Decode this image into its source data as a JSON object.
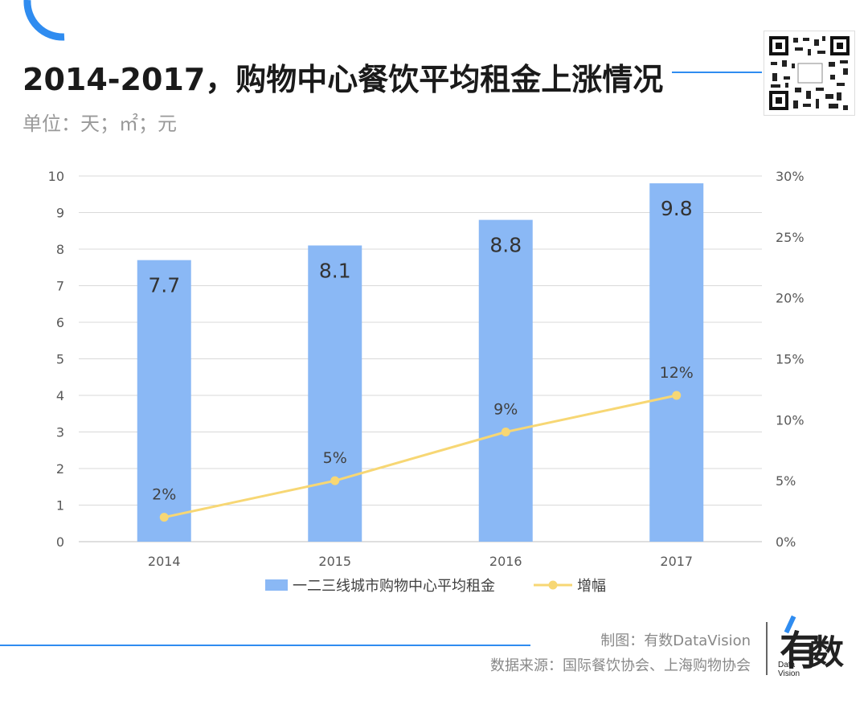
{
  "header": {
    "title": "2014-2017，购物中心餐饮平均租金上涨情况",
    "subtitle": "单位：天；㎡；元"
  },
  "chart_data": {
    "type": "bar",
    "categories": [
      "2014",
      "2015",
      "2016",
      "2017"
    ],
    "series": [
      {
        "name": "一二三线城市购物中心平均租金",
        "type": "bar",
        "axis": "left",
        "values": [
          7.7,
          8.1,
          8.8,
          9.8
        ],
        "labels": [
          "7.7",
          "8.1",
          "8.8",
          "9.8"
        ],
        "color": "#8ab8f5"
      },
      {
        "name": "增幅",
        "type": "line",
        "axis": "right",
        "values": [
          0.02,
          0.05,
          0.09,
          0.12
        ],
        "labels": [
          "2%",
          "5%",
          "9%",
          "12%"
        ],
        "color": "#f7d774"
      }
    ],
    "left_axis": {
      "ylim": [
        0,
        10
      ],
      "ticks": [
        "0",
        "1",
        "2",
        "3",
        "4",
        "5",
        "6",
        "7",
        "8",
        "9",
        "10"
      ]
    },
    "right_axis": {
      "ylim": [
        0,
        0.3
      ],
      "ticks": [
        "0%",
        "5%",
        "10%",
        "15%",
        "20%",
        "25%",
        "30%"
      ]
    },
    "grid": true,
    "legend_position": "bottom"
  },
  "footer": {
    "maker": "制图：有数DataVision",
    "source": "数据来源：国际餐饮协会、上海购物协会",
    "logo_char1": "有",
    "logo_char2": "数",
    "logo_en": "Data\nVision"
  },
  "colors": {
    "accent": "#2f8cf0",
    "bar": "#8ab8f5",
    "line": "#f7d774"
  }
}
